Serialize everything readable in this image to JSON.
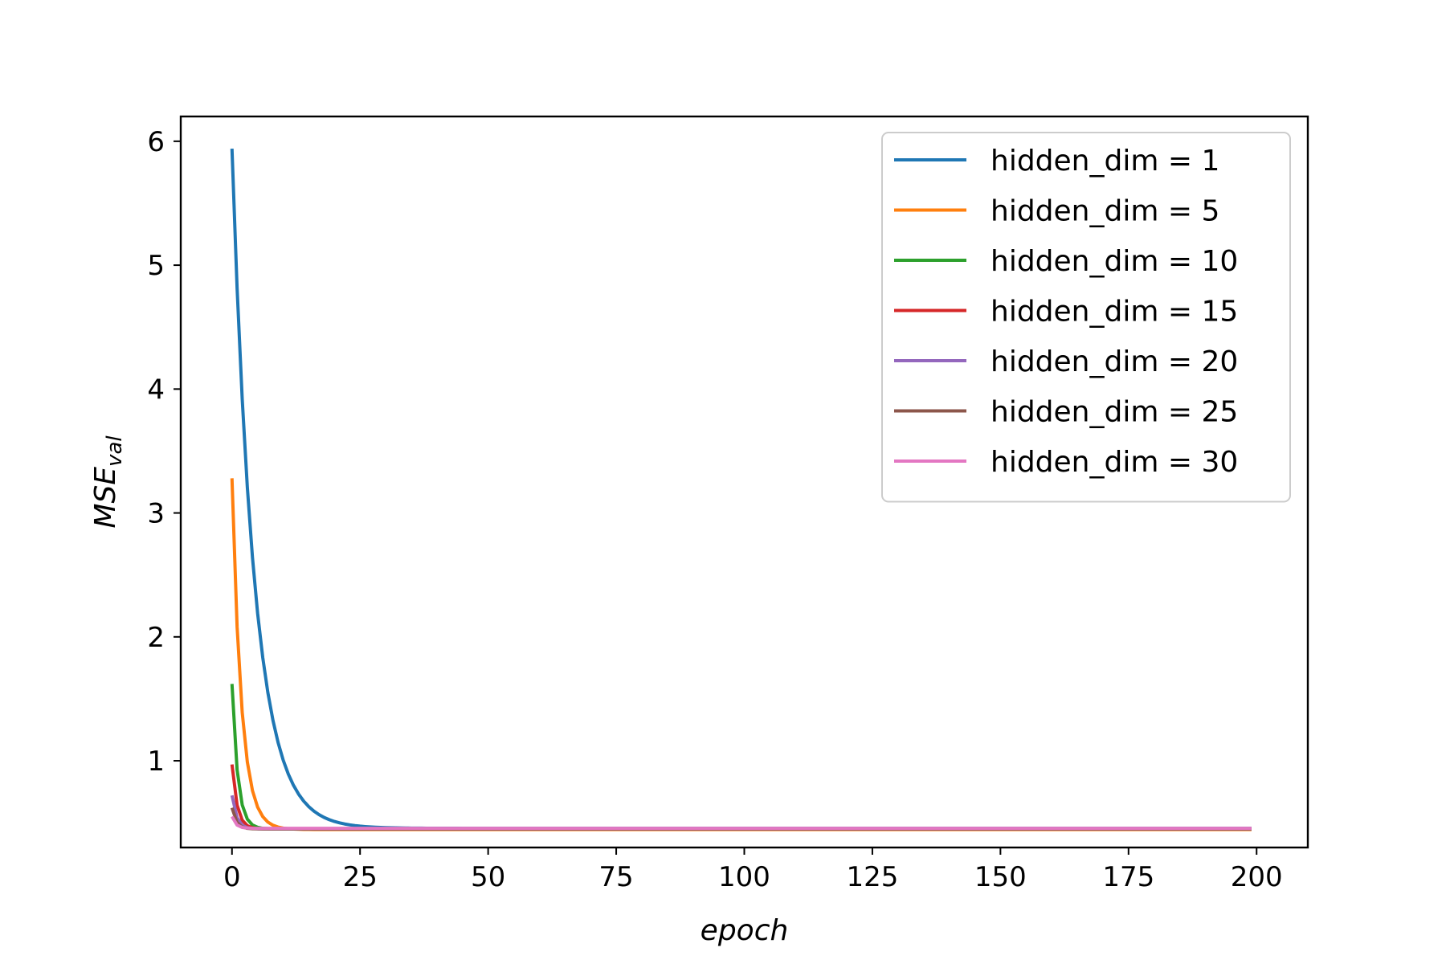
{
  "chart_data": {
    "type": "line",
    "title": "",
    "xlabel": "epoch",
    "ylabel": {
      "main": "MSE",
      "sub": "val"
    },
    "xlim": [
      -10,
      210
    ],
    "ylim": [
      0.3,
      6.2
    ],
    "xticks": [
      0,
      25,
      50,
      75,
      100,
      125,
      150,
      175,
      200
    ],
    "yticks": [
      1,
      2,
      3,
      4,
      5,
      6
    ],
    "grid": false,
    "legend_position": "top-right",
    "x_range": [
      0,
      199
    ],
    "series": [
      {
        "name": "hidden_dim = 1",
        "color": "#1f77b4",
        "start": 5.94,
        "plateau": 0.455,
        "decay": 0.23
      },
      {
        "name": "hidden_dim = 5",
        "color": "#ff7f0e",
        "start": 3.28,
        "plateau": 0.445,
        "decay": 0.55
      },
      {
        "name": "hidden_dim = 10",
        "color": "#2ca02c",
        "start": 1.62,
        "plateau": 0.45,
        "decay": 0.9
      },
      {
        "name": "hidden_dim = 15",
        "color": "#d62728",
        "start": 0.97,
        "plateau": 0.45,
        "decay": 1.0
      },
      {
        "name": "hidden_dim = 20",
        "color": "#9467bd",
        "start": 0.72,
        "plateau": 0.45,
        "decay": 1.1
      },
      {
        "name": "hidden_dim = 25",
        "color": "#8c564b",
        "start": 0.62,
        "plateau": 0.45,
        "decay": 1.2
      },
      {
        "name": "hidden_dim = 30",
        "color": "#e377c2",
        "start": 0.55,
        "plateau": 0.455,
        "decay": 1.3
      }
    ]
  }
}
